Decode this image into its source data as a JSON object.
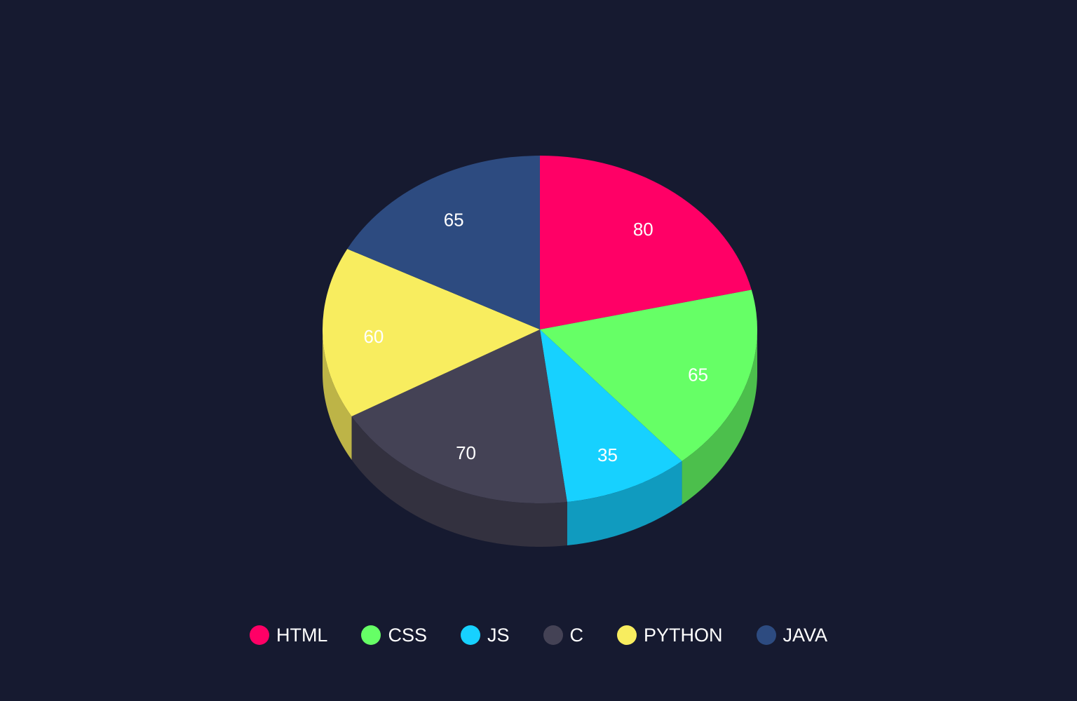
{
  "chart_data": {
    "type": "pie",
    "style": "3d",
    "categories": [
      "HTML",
      "CSS",
      "JS",
      "C",
      "PYTHON",
      "JAVA"
    ],
    "values": [
      80,
      65,
      35,
      70,
      60,
      65
    ],
    "colors": [
      "#ff0066",
      "#66ff66",
      "#17d1ff",
      "#444255",
      "#f8ed5f",
      "#2d4b80"
    ],
    "side_colors": [
      "#c2004e",
      "#4cbf4c",
      "#109bbf",
      "#33313f",
      "#bdb447",
      "#223860"
    ],
    "legend_position": "bottom",
    "data_labels": true
  },
  "legend": {
    "items": [
      {
        "label": "HTML",
        "color": "#ff0066"
      },
      {
        "label": "CSS",
        "color": "#66ff66"
      },
      {
        "label": "JS",
        "color": "#17d1ff"
      },
      {
        "label": "C",
        "color": "#444255"
      },
      {
        "label": "PYTHON",
        "color": "#f8ed5f"
      },
      {
        "label": "JAVA",
        "color": "#2d4b80"
      }
    ]
  },
  "background_color": "#161a30"
}
